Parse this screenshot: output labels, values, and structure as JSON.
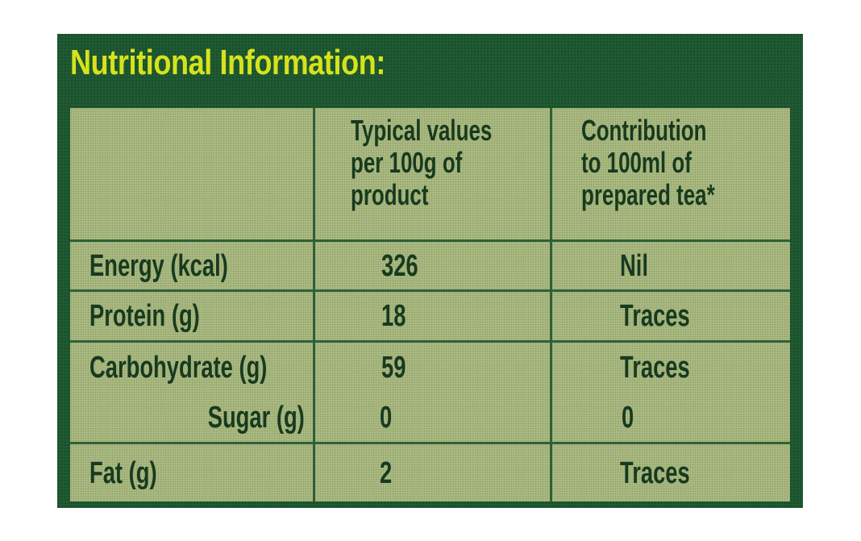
{
  "title": "Nutritional Information:",
  "table": {
    "headers": [
      "",
      "Typical values per 100g of product",
      "Contribution to 100ml of prepared tea*"
    ],
    "rows": [
      {
        "label": "Energy (kcal)",
        "value": "326",
        "contribution": "Nil"
      },
      {
        "label": "Protein (g)",
        "value": "18",
        "contribution": "Traces"
      },
      {
        "label": "Carbohydrate (g)",
        "value": "59",
        "contribution": "Traces"
      },
      {
        "label": "Sugar (g)",
        "value": "0",
        "contribution": "0"
      },
      {
        "label": "Fat (g)",
        "value": "2",
        "contribution": "Traces"
      }
    ]
  },
  "colors": {
    "label_background": "#1f5a32",
    "title": "#d6e21c",
    "panel": "#b3c187",
    "text": "#173a1f"
  }
}
